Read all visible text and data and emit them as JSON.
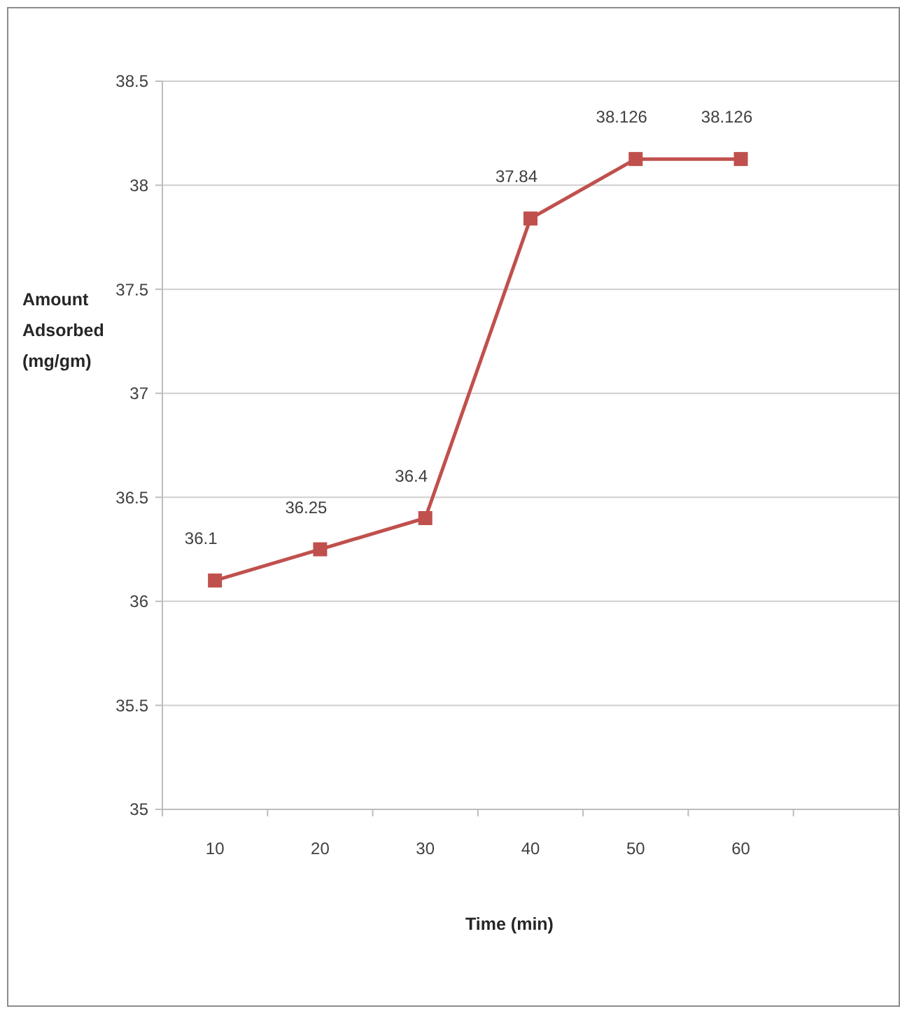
{
  "chart_data": {
    "type": "line",
    "xlabel": "Time (min)",
    "ylabel": "Amount Adsorbed (mg/gm)",
    "categories": [
      "10",
      "20",
      "30",
      "40",
      "50",
      "60",
      null
    ],
    "series": [
      {
        "color": "#c0504d",
        "values": [
          36.1,
          36.25,
          36.4,
          37.84,
          38.126,
          38.126,
          null
        ]
      }
    ],
    "ylim": [
      35,
      38.5
    ],
    "yticks": [
      35,
      35.5,
      36,
      36.5,
      37,
      37.5,
      38,
      38.5
    ],
    "grid": "y",
    "marker": "square",
    "line_style": "solid",
    "data_labels": true
  }
}
